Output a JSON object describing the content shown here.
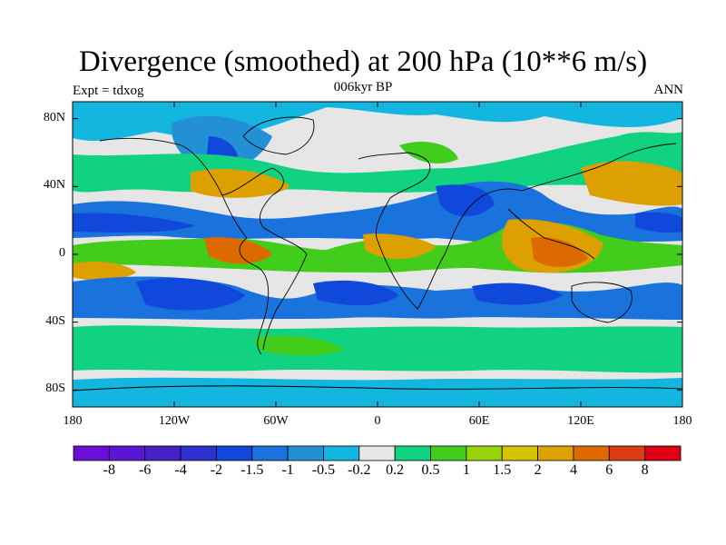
{
  "title": "Divergence (smoothed) at 200 hPa (10**6 m/s)",
  "subtitle": "006kyr BP",
  "left_label": "Expt = tdxog",
  "right_label": "ANN",
  "map": {
    "projection": "cylindrical equidistant",
    "lon_range": [
      -180,
      180
    ],
    "lat_range": [
      -90,
      90
    ],
    "background_color": "#e6e6e6",
    "coastline_color": "#000000",
    "y_ticks": [
      "80N",
      "40N",
      "0",
      "40S",
      "80S"
    ],
    "x_ticks": [
      "180",
      "120W",
      "60W",
      "0",
      "60E",
      "120E",
      "180"
    ]
  },
  "colorbar": {
    "colors": [
      "#6a0fd8",
      "#5a16d0",
      "#4422c8",
      "#2f2fd0",
      "#1148dc",
      "#1a72dc",
      "#2390d6",
      "#13b6de",
      "#e6e6e6",
      "#11d280",
      "#42cc1c",
      "#98d208",
      "#d2c400",
      "#dca000",
      "#dc6a00",
      "#dc3c14",
      "#e00014"
    ],
    "labels": [
      "-8",
      "-6",
      "-4",
      "-2",
      "-1.5",
      "-1",
      "-0.5",
      "-0.2",
      "0.2",
      "0.5",
      "1",
      "1.5",
      "2",
      "4",
      "6",
      "8"
    ]
  }
}
